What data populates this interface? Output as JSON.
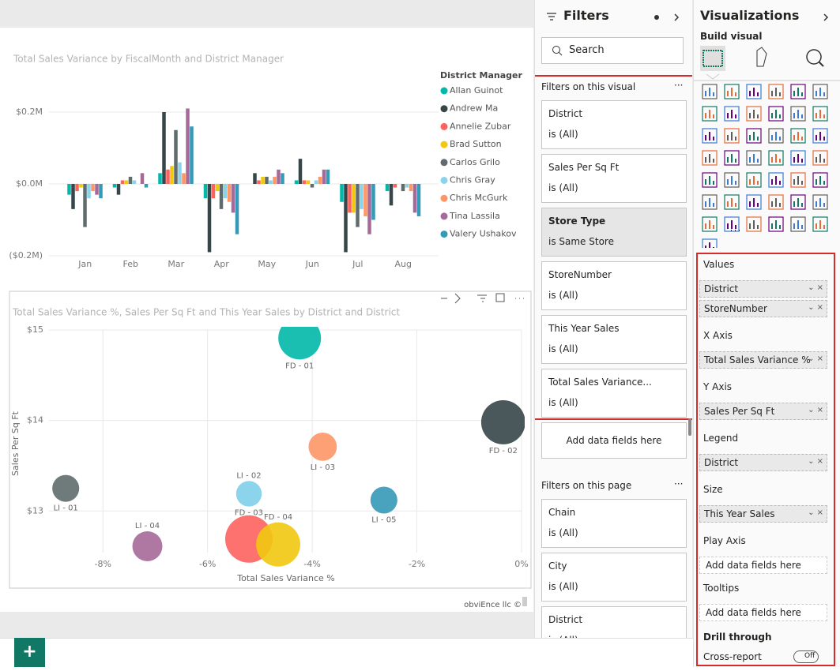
{
  "chart_data": [
    {
      "type": "bar",
      "title": "Total Sales Variance by FiscalMonth and District Manager",
      "legend_title": "District Manager",
      "categories": [
        "Jan",
        "Feb",
        "Mar",
        "Apr",
        "May",
        "Jun",
        "Jul",
        "Aug"
      ],
      "series": [
        {
          "name": "Allan Guinot",
          "color": "#01b8aa",
          "values": [
            -0.03,
            -0.01,
            0.03,
            -0.04,
            0.0,
            0.01,
            -0.05,
            -0.02
          ]
        },
        {
          "name": "Andrew Ma",
          "color": "#374649",
          "values": [
            -0.07,
            -0.03,
            0.2,
            -0.19,
            0.03,
            0.07,
            -0.19,
            -0.06
          ]
        },
        {
          "name": "Annelie Zubar",
          "color": "#fd625e",
          "values": [
            -0.02,
            0.01,
            0.04,
            -0.04,
            0.01,
            0.01,
            -0.08,
            -0.01
          ]
        },
        {
          "name": "Brad Sutton",
          "color": "#f2c80f",
          "values": [
            -0.01,
            0.01,
            0.05,
            -0.02,
            0.02,
            0.01,
            -0.08,
            0.0
          ]
        },
        {
          "name": "Carlos Grilo",
          "color": "#5f6b6d",
          "values": [
            -0.12,
            0.02,
            0.15,
            -0.07,
            0.02,
            -0.01,
            -0.12,
            -0.02
          ]
        },
        {
          "name": "Chris Gray",
          "color": "#8ad4eb",
          "values": [
            -0.04,
            0.01,
            0.06,
            -0.04,
            0.01,
            0.01,
            -0.07,
            -0.01
          ]
        },
        {
          "name": "Chris McGurk",
          "color": "#fe9666",
          "values": [
            -0.02,
            0.0,
            0.03,
            -0.05,
            0.02,
            0.02,
            -0.09,
            -0.02
          ]
        },
        {
          "name": "Tina Lassila",
          "color": "#a66999",
          "values": [
            -0.03,
            0.03,
            0.21,
            -0.08,
            0.04,
            0.04,
            -0.14,
            -0.08
          ]
        },
        {
          "name": "Valery Ushakov",
          "color": "#3599b8",
          "values": [
            -0.04,
            -0.01,
            0.16,
            -0.14,
            0.03,
            0.04,
            -0.1,
            -0.09
          ]
        }
      ],
      "ylim": [
        -0.2,
        0.25
      ],
      "yticks": [
        {
          "value": -0.2,
          "label": "($0.2M)"
        },
        {
          "value": 0,
          "label": "$0.0M"
        },
        {
          "value": 0.2,
          "label": "$0.2M"
        }
      ],
      "grid": true
    },
    {
      "type": "scatter",
      "title": "Total Sales Variance %, Sales Per Sq Ft and This Year Sales by District and District",
      "x_label": "Total Sales Variance %",
      "y_label": "Sales Per Sq Ft",
      "labels": [
        "FD - 01",
        "FD - 02",
        "LI - 03",
        "LI - 01",
        "FD - 03",
        "LI - 02",
        "LI - 05",
        "LI - 04",
        null,
        "FD - 04"
      ],
      "label_positions": [
        "below",
        "below",
        "below",
        "below",
        "below",
        "above",
        "below",
        "above",
        "below",
        "above"
      ],
      "x": [
        -4.24,
        -0.35,
        -3.8,
        -8.71,
        -5.21,
        -5.21,
        -2.63,
        -7.15,
        -5.21,
        -4.65
      ],
      "values": [
        14.91,
        13.98,
        13.71,
        13.25,
        13.19,
        13.19,
        13.12,
        12.61,
        12.69,
        12.63
      ],
      "sizes": [
        7.3,
        7.8,
        3.2,
        2.9,
        2.6,
        2.6,
        2.9,
        3.6,
        9.0,
        7.8
      ],
      "colors": [
        "#01b8aa",
        "#374649",
        "#fe9666",
        "#5f6b6d",
        "#8ad4eb",
        "#8ad4eb",
        "#3599b8",
        "#a66999",
        "#fd625e",
        "#f2c80f"
      ],
      "xlim": [
        -9.03,
        0
      ],
      "ylim": [
        12.54,
        15
      ],
      "xticks": [
        {
          "value": -8,
          "label": "-8%"
        },
        {
          "value": -6,
          "label": "-6%"
        },
        {
          "value": -4,
          "label": "-4%"
        },
        {
          "value": -2,
          "label": "-2%"
        },
        {
          "value": 0,
          "label": "0%"
        }
      ],
      "yticks": [
        {
          "value": 13,
          "label": "$13"
        },
        {
          "value": 14,
          "label": "$14"
        },
        {
          "value": 15,
          "label": "$15"
        }
      ],
      "grid": true,
      "footer": "obviEnce llc ©"
    }
  ],
  "filters": {
    "title": "Filters",
    "search": "Search",
    "visual_section": "Filters on this visual",
    "visual_filters": [
      {
        "name": "District",
        "state": "is (All)"
      },
      {
        "name": "Sales Per Sq Ft",
        "state": "is (All)"
      },
      {
        "name": "Store Type",
        "state": "is Same Store",
        "selected": true
      },
      {
        "name": "StoreNumber",
        "state": "is (All)"
      },
      {
        "name": "This Year Sales",
        "state": "is (All)"
      },
      {
        "name": "Total Sales Variance...",
        "state": "is (All)"
      }
    ],
    "add_fields": "Add data fields here",
    "page_section": "Filters on this page",
    "page_filters": [
      {
        "name": "Chain",
        "state": "is (All)"
      },
      {
        "name": "City",
        "state": "is (All)"
      },
      {
        "name": "District",
        "state": "is (All)"
      }
    ]
  },
  "visualizations": {
    "title": "Visualizations",
    "build_visual": "Build visual",
    "wells": [
      {
        "name": "Values",
        "fields": [
          "District",
          "StoreNumber"
        ]
      },
      {
        "name": "X Axis",
        "fields": [
          "Total Sales Variance %"
        ]
      },
      {
        "name": "Y Axis",
        "fields": [
          "Sales Per Sq Ft"
        ]
      },
      {
        "name": "Legend",
        "fields": [
          "District"
        ]
      },
      {
        "name": "Size",
        "fields": [
          "This Year Sales"
        ]
      },
      {
        "name": "Play Axis",
        "placeholder": "Add data fields here"
      },
      {
        "name": "Tooltips",
        "placeholder": "Add data fields here"
      }
    ],
    "drill_through": "Drill through",
    "cross_report": "Cross-report",
    "toggle": "Off"
  },
  "add_page": "+"
}
